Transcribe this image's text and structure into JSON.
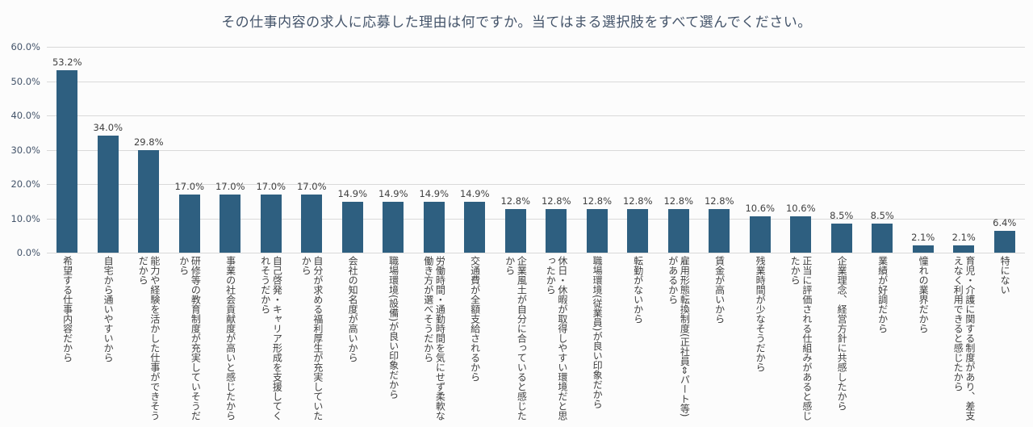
{
  "title": "その仕事内容の求人に応募した理由は何ですか。当てはまる選択肢をすべて選んでください。",
  "colors": {
    "bar": "#2e5f80",
    "grid": "#d9d9d9",
    "axis_text": "#44546a",
    "value_text": "#404040",
    "category_text": "#3f3f3f",
    "title_text": "#44546a",
    "background": "#fcfcfc"
  },
  "chart_data": {
    "type": "bar",
    "title": "その仕事内容の求人に応募した理由は何ですか。当てはまる選択肢をすべて選んでください。",
    "xlabel": "",
    "ylabel": "",
    "ylim": [
      0,
      60
    ],
    "ytick_step": 10,
    "ytick_labels": [
      "60.0%",
      "50.0%",
      "40.0%",
      "30.0%",
      "20.0%",
      "10.0%",
      "0.0%"
    ],
    "grid": true,
    "legend": "none",
    "categories": [
      "希望する仕事内容だから",
      "自宅から通いやすいから",
      "能力や経験を活かした仕事ができそうだから",
      "研修等の教育制度が充実していそうだから",
      "事業の社会貢献度が高いと感じたから",
      "自己啓発・キャリア形成を支援してくれそうだから",
      "自分が求める福利厚生が充実していたから",
      "会社の知名度が高いから",
      "職場環境(設備)が良い印象だから",
      "労働時間・通勤時間を気にせず柔軟な働き方が選べそうだから",
      "交通費が全額支給されるから",
      "企業風土が自分に合っていると感じたから",
      "休日・休暇が取得しやすい環境だと思ったから",
      "職場環境(従業員)が良い印象だから",
      "転勤がないから",
      "雇用形態転換制度(正社員⇔パート等)があるから",
      "賃金が高いから",
      "残業時間が少なそうだから",
      "正当に評価される仕組みがあると感じたから",
      "企業理念、経営方針に共感したから",
      "業績が好調だから",
      "憧れの業界だから",
      "育児・介護に関する制度があり、差支えなく利用できると感じたから",
      "特にない"
    ],
    "values": [
      53.2,
      34.0,
      29.8,
      17.0,
      17.0,
      17.0,
      17.0,
      14.9,
      14.9,
      14.9,
      14.9,
      12.8,
      12.8,
      12.8,
      12.8,
      12.8,
      12.8,
      10.6,
      10.6,
      8.5,
      8.5,
      2.1,
      2.1,
      6.4
    ],
    "value_labels": [
      "53.2%",
      "34.0%",
      "29.8%",
      "17.0%",
      "17.0%",
      "17.0%",
      "17.0%",
      "14.9%",
      "14.9%",
      "14.9%",
      "14.9%",
      "12.8%",
      "12.8%",
      "12.8%",
      "12.8%",
      "12.8%",
      "12.8%",
      "10.6%",
      "10.6%",
      "8.5%",
      "8.5%",
      "2.1%",
      "2.1%",
      "6.4%"
    ]
  }
}
